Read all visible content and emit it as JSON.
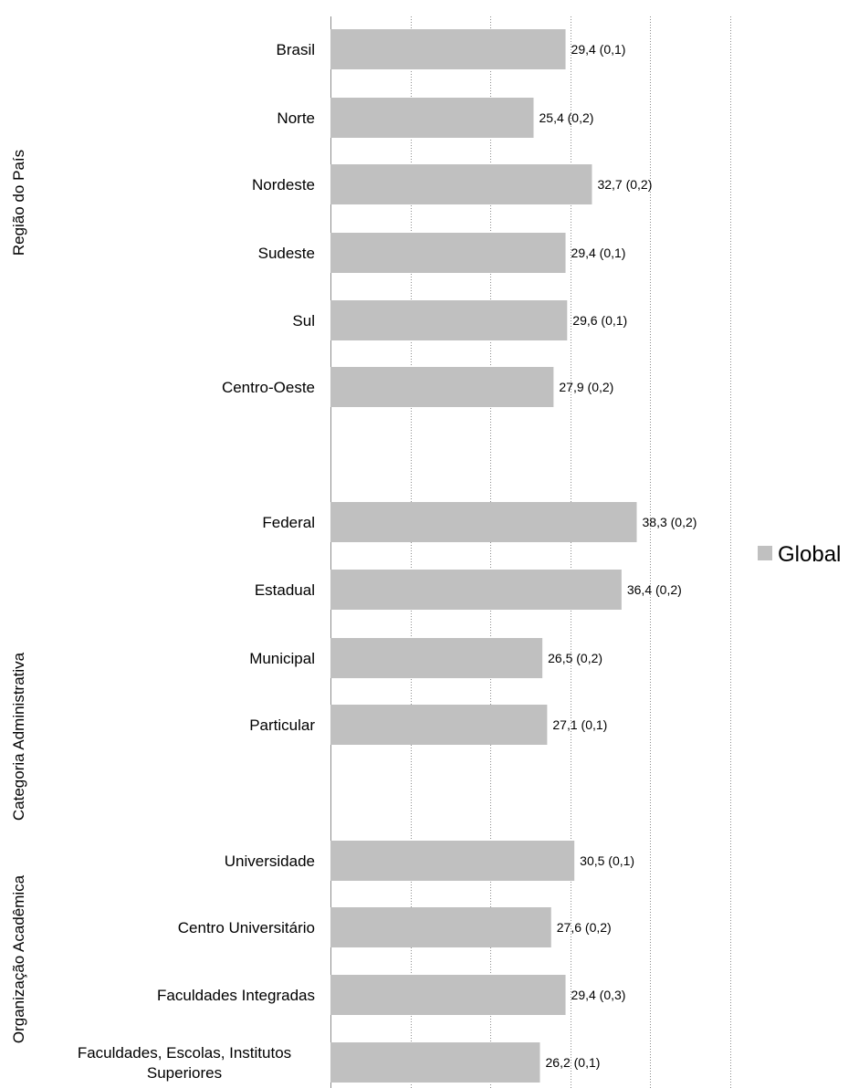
{
  "chart_data": {
    "type": "bar",
    "orientation": "horizontal",
    "title": "",
    "xlabel": "",
    "ylabel": "",
    "xlim": [
      0,
      50
    ],
    "grid": true,
    "legend_position": "right",
    "series": [
      {
        "name": "Global",
        "color": "#c0c0c0"
      }
    ],
    "groups": [
      {
        "name": "Região do País",
        "items": [
          {
            "category": "Brasil",
            "value": 29.4,
            "label": "29,4 (0,1)"
          },
          {
            "category": "Norte",
            "value": 25.4,
            "label": "25,4 (0,2)"
          },
          {
            "category": "Nordeste",
            "value": 32.7,
            "label": "32,7 (0,2)"
          },
          {
            "category": "Sudeste",
            "value": 29.4,
            "label": "29,4 (0,1)"
          },
          {
            "category": "Sul",
            "value": 29.6,
            "label": "29,6 (0,1)"
          },
          {
            "category": "Centro-Oeste",
            "value": 27.9,
            "label": "27,9 (0,2)"
          }
        ]
      },
      {
        "name": "Categoria Administrativa",
        "items": [
          {
            "category": "Federal",
            "value": 38.3,
            "label": "38,3 (0,2)"
          },
          {
            "category": "Estadual",
            "value": 36.4,
            "label": "36,4 (0,2)"
          },
          {
            "category": "Municipal",
            "value": 26.5,
            "label": "26,5 (0,2)"
          },
          {
            "category": "Particular",
            "value": 27.1,
            "label": "27,1 (0,1)"
          }
        ]
      },
      {
        "name": "Organização Acadêmica",
        "items": [
          {
            "category": "Universidade",
            "value": 30.5,
            "label": "30,5 (0,1)"
          },
          {
            "category": "Centro Universitário",
            "value": 27.6,
            "label": "27,6 (0,2)"
          },
          {
            "category": "Faculdades Integradas",
            "value": 29.4,
            "label": "29,4 (0,3)"
          },
          {
            "category": "Faculdades, Escolas, Institutos Superiores",
            "value": 26.2,
            "label": "26,2 (0,1)"
          }
        ]
      }
    ]
  }
}
